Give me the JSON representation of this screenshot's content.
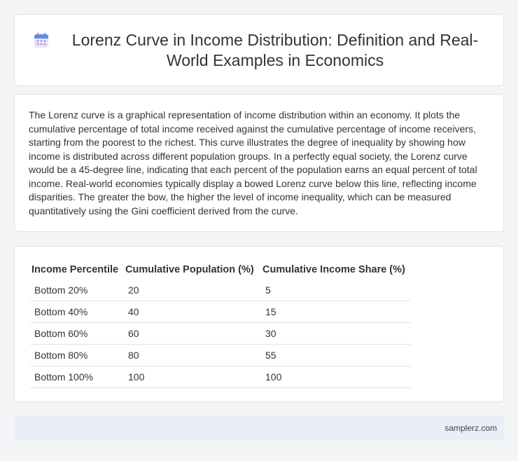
{
  "header": {
    "icon": "calendar-icon",
    "title": "Lorenz Curve in Income Distribution: Definition and Real-World Examples in Economics"
  },
  "intro": {
    "text": "The Lorenz curve is a graphical representation of income distribution within an economy. It plots the cumulative percentage of total income received against the cumulative percentage of income receivers, starting from the poorest to the richest. This curve illustrates the degree of inequality by showing how income is distributed across different population groups. In a perfectly equal society, the Lorenz curve would be a 45-degree line, indicating that each percent of the population earns an equal percent of total income. Real-world economies typically display a bowed Lorenz curve below this line, reflecting income disparities. The greater the bow, the higher the level of income inequality, which can be measured quantitatively using the Gini coefficient derived from the curve."
  },
  "table": {
    "headers": [
      "Income Percentile",
      "Cumulative Population (%)",
      "Cumulative Income Share (%)"
    ],
    "rows": [
      [
        "Bottom 20%",
        "20",
        "5"
      ],
      [
        "Bottom 40%",
        "40",
        "15"
      ],
      [
        "Bottom 60%",
        "60",
        "30"
      ],
      [
        "Bottom 80%",
        "80",
        "55"
      ],
      [
        "Bottom 100%",
        "100",
        "100"
      ]
    ]
  },
  "footer": {
    "site": "samplerz.com"
  }
}
